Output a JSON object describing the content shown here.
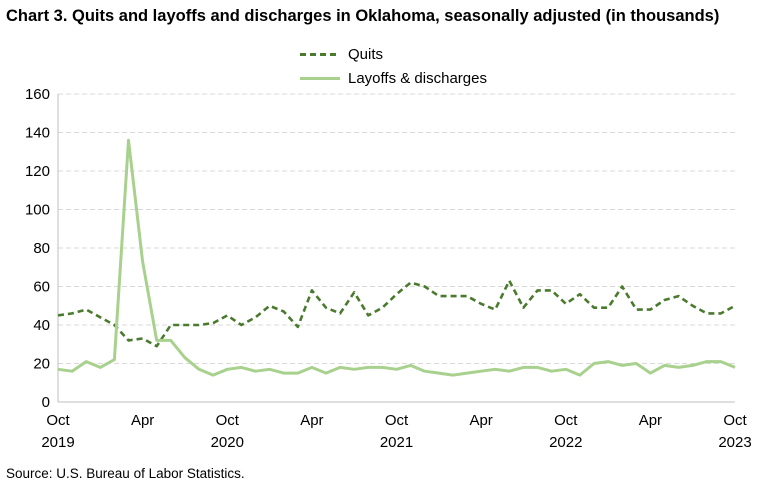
{
  "header": {
    "title": "Chart 3. Quits and layoffs and discharges in Oklahoma, seasonally adjusted (in thousands)"
  },
  "footer": {
    "source": "Source: U.S. Bureau of Labor Statistics."
  },
  "legend": {
    "items": [
      "Quits",
      "Layoffs & discharges"
    ]
  },
  "colors": {
    "quits": "#4a7a2e",
    "layoffs": "#a9d18e",
    "grid": "#d9d9d9",
    "axis": "#bfbfbf"
  },
  "chart_data": {
    "type": "line",
    "title": "Chart 3. Quits and layoffs and discharges in Oklahoma, seasonally adjusted (in thousands)",
    "x_range": [
      "2019-10",
      "2023-10"
    ],
    "ylim": [
      0,
      160
    ],
    "y_ticks": [
      0,
      20,
      40,
      60,
      80,
      100,
      120,
      140,
      160
    ],
    "x_ticks": [
      {
        "month_index": 0,
        "label": "Oct",
        "year": "2019"
      },
      {
        "month_index": 6,
        "label": "Apr",
        "year": ""
      },
      {
        "month_index": 12,
        "label": "Oct",
        "year": "2020"
      },
      {
        "month_index": 18,
        "label": "Apr",
        "year": ""
      },
      {
        "month_index": 24,
        "label": "Oct",
        "year": "2021"
      },
      {
        "month_index": 30,
        "label": "Apr",
        "year": ""
      },
      {
        "month_index": 36,
        "label": "Oct",
        "year": "2022"
      },
      {
        "month_index": 42,
        "label": "Apr",
        "year": ""
      },
      {
        "month_index": 48,
        "label": "Oct",
        "year": "2023"
      }
    ],
    "grid": "horizontal dashed",
    "legend_position": "top-center",
    "series": [
      {
        "name": "Quits",
        "style": "dashed",
        "values": [
          45,
          46,
          48,
          44,
          40,
          32,
          33,
          29,
          40,
          40,
          40,
          41,
          45,
          40,
          44,
          50,
          47,
          39,
          58,
          49,
          46,
          57,
          45,
          49,
          56,
          62,
          60,
          55,
          55,
          55,
          51,
          48,
          63,
          49,
          58,
          58,
          51,
          56,
          49,
          49,
          60,
          48,
          48,
          53,
          55,
          50,
          46,
          46,
          50
        ]
      },
      {
        "name": "Layoffs & discharges",
        "style": "solid",
        "values": [
          17,
          16,
          21,
          18,
          22,
          136,
          73,
          32,
          32,
          23,
          17,
          14,
          17,
          18,
          16,
          17,
          15,
          15,
          18,
          15,
          18,
          17,
          18,
          18,
          17,
          19,
          16,
          15,
          14,
          15,
          16,
          17,
          16,
          18,
          18,
          16,
          17,
          14,
          20,
          21,
          19,
          20,
          15,
          19,
          18,
          19,
          21,
          21,
          18
        ]
      }
    ]
  }
}
